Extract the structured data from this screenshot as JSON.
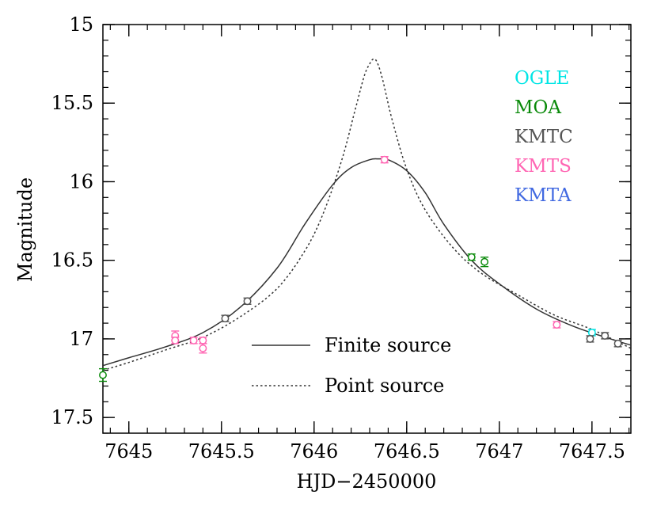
{
  "chart_data": {
    "type": "scatter",
    "xlabel": "HJD−2450000",
    "ylabel": "Magnitude",
    "xlim": [
      7644.86,
      7647.71
    ],
    "ylim": [
      15.0,
      17.6
    ],
    "y_inverted": true,
    "grid": false,
    "x_ticks": [
      "7645",
      "7645.5",
      "7646",
      "7646.5",
      "7647",
      "7647.5"
    ],
    "y_ticks": [
      "15",
      "15.5",
      "16",
      "16.5",
      "17",
      "17.5"
    ],
    "x_tick_values": [
      7645,
      7645.5,
      7646,
      7646.5,
      7647,
      7647.5
    ],
    "y_tick_values": [
      15,
      15.5,
      16,
      16.5,
      17,
      17.5
    ],
    "legend_placement": "top-right",
    "series_legend": [
      {
        "name": "OGLE",
        "color": "#00e5e5"
      },
      {
        "name": "MOA",
        "color": "#0a8a0a"
      },
      {
        "name": "KMTC",
        "color": "#555555"
      },
      {
        "name": "KMTS",
        "color": "#ff66b3"
      },
      {
        "name": "KMTA",
        "color": "#4169e1"
      }
    ],
    "series": [
      {
        "name": "OGLE",
        "color": "#00e5e5",
        "x": [
          7647.5
        ],
        "y": [
          16.96
        ],
        "err": [
          0.02
        ]
      },
      {
        "name": "MOA",
        "color": "#0a8a0a",
        "x": [
          7646.85,
          7646.92,
          7644.86
        ],
        "y": [
          16.48,
          16.51,
          17.23
        ],
        "err": [
          0.02,
          0.03,
          0.04
        ]
      },
      {
        "name": "KMTC",
        "color": "#555555",
        "x": [
          7645.52,
          7645.64,
          7647.49,
          7647.57,
          7647.64
        ],
        "y": [
          16.87,
          16.76,
          17.0,
          16.98,
          17.03
        ],
        "err": [
          0.02,
          0.02,
          0.02,
          0.02,
          0.02
        ]
      },
      {
        "name": "KMTS",
        "color": "#ff66b3",
        "x": [
          7645.25,
          7645.25,
          7645.35,
          7645.4,
          7645.4,
          7646.38,
          7647.31
        ],
        "y": [
          16.98,
          17.01,
          17.01,
          17.01,
          17.06,
          15.86,
          16.91
        ],
        "err": [
          0.03,
          0.02,
          0.02,
          0.02,
          0.03,
          0.02,
          0.02
        ]
      },
      {
        "name": "KMTA",
        "color": "#4169e1",
        "x": [],
        "y": [],
        "err": []
      }
    ],
    "models": [
      {
        "name": "Finite source",
        "style": "solid",
        "color": "#333333",
        "x": [
          7644.86,
          7645.0,
          7645.2,
          7645.4,
          7645.6,
          7645.8,
          7645.95,
          7646.1,
          7646.2,
          7646.3,
          7646.35,
          7646.4,
          7646.5,
          7646.6,
          7646.7,
          7646.85,
          7647.0,
          7647.2,
          7647.4,
          7647.6,
          7647.71
        ],
        "y": [
          17.17,
          17.12,
          17.05,
          16.96,
          16.8,
          16.55,
          16.27,
          16.02,
          15.91,
          15.86,
          15.855,
          15.86,
          15.93,
          16.07,
          16.27,
          16.5,
          16.65,
          16.81,
          16.92,
          17.0,
          17.04
        ]
      },
      {
        "name": "Point source",
        "style": "dotted",
        "color": "#333333",
        "x": [
          7644.86,
          7645.0,
          7645.2,
          7645.4,
          7645.6,
          7645.8,
          7645.95,
          7646.05,
          7646.15,
          7646.22,
          7646.27,
          7646.3,
          7646.32,
          7646.34,
          7646.37,
          7646.42,
          7646.5,
          7646.6,
          7646.75,
          7646.9,
          7647.1,
          7647.3,
          7647.5,
          7647.71
        ],
        "y": [
          17.2,
          17.15,
          17.07,
          16.99,
          16.86,
          16.68,
          16.44,
          16.2,
          15.86,
          15.55,
          15.33,
          15.25,
          15.22,
          15.24,
          15.35,
          15.6,
          15.92,
          16.18,
          16.42,
          16.58,
          16.72,
          16.85,
          16.94,
          17.06
        ]
      }
    ],
    "line_legend": [
      {
        "name": "Finite source",
        "style": "solid"
      },
      {
        "name": "Point source",
        "style": "dotted"
      }
    ]
  }
}
